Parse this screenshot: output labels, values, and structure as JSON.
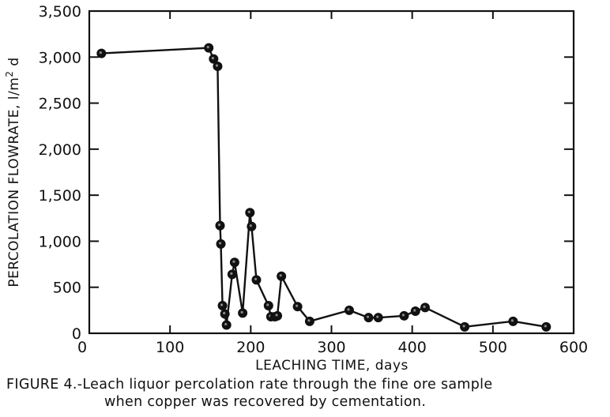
{
  "chart_data": {
    "type": "line",
    "xlabel": "LEACHING TIME, days",
    "ylabel": "PERCOLATION FLOWRATE, l/m",
    "ylabel_sup": "2",
    "ylabel_end": " d",
    "xlim": [
      0,
      600
    ],
    "ylim": [
      0,
      3500
    ],
    "x_ticks": [
      0,
      100,
      200,
      300,
      400,
      500,
      600
    ],
    "x_tick_labels": [
      "0",
      "100",
      "200",
      "300",
      "400",
      "500",
      "600"
    ],
    "y_ticks": [
      0,
      500,
      1000,
      1500,
      2000,
      2500,
      3000,
      3500
    ],
    "y_tick_labels": [
      "0",
      "500",
      "1,000",
      "1,500",
      "2,000",
      "2,500",
      "3,000",
      "3,500"
    ],
    "grid": false,
    "legend": "none",
    "series": [
      {
        "points": [
          [
            15,
            3040
          ],
          [
            148,
            3100
          ],
          [
            154,
            2980
          ],
          [
            159,
            2900
          ],
          [
            162,
            1170
          ],
          [
            163,
            970
          ],
          [
            165,
            300
          ],
          [
            168,
            210
          ],
          [
            170,
            90
          ],
          [
            177,
            640
          ],
          [
            180,
            770
          ],
          [
            190,
            220
          ],
          [
            199,
            1310
          ],
          [
            201,
            1160
          ],
          [
            207,
            580
          ],
          [
            222,
            300
          ],
          [
            225,
            180
          ],
          [
            230,
            180
          ],
          [
            233,
            190
          ],
          [
            238,
            620
          ],
          [
            258,
            290
          ],
          [
            273,
            130
          ],
          [
            322,
            250
          ],
          [
            346,
            170
          ],
          [
            358,
            170
          ],
          [
            390,
            190
          ],
          [
            404,
            240
          ],
          [
            416,
            280
          ],
          [
            465,
            70
          ],
          [
            525,
            130
          ],
          [
            566,
            70
          ]
        ],
        "color": "#111111"
      }
    ]
  },
  "caption": {
    "label": "FIGURE 4.-",
    "line1": "Leach liquor percolation rate through the fine ore sample",
    "line2": "when copper was recovered by cementation."
  }
}
